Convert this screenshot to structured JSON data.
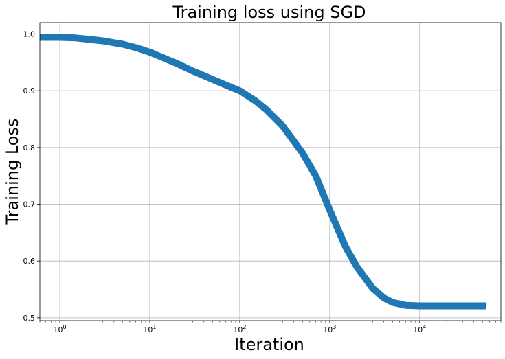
{
  "chart_data": {
    "type": "line",
    "title": "Training loss using SGD",
    "xlabel": "Iteration",
    "ylabel": "Training Loss",
    "xscale": "log",
    "xlim": [
      0.6,
      80000
    ],
    "ylim": [
      0.495,
      1.02
    ],
    "grid": true,
    "x_ticks": [
      {
        "base": "10",
        "exp": "0",
        "value": 1
      },
      {
        "base": "10",
        "exp": "1",
        "value": 10
      },
      {
        "base": "10",
        "exp": "2",
        "value": 100
      },
      {
        "base": "10",
        "exp": "3",
        "value": 1000
      },
      {
        "base": "10",
        "exp": "4",
        "value": 10000
      }
    ],
    "y_ticks": [
      "0.5",
      "0.6",
      "0.7",
      "0.8",
      "0.9",
      "1.0"
    ],
    "series": [
      {
        "color": "#1f77b4",
        "x": [
          0.6,
          1,
          1.5,
          2,
          3,
          5,
          7,
          10,
          20,
          30,
          50,
          70,
          100,
          150,
          200,
          300,
          500,
          700,
          1000,
          1500,
          2000,
          3000,
          4000,
          5000,
          7000,
          10000,
          20000,
          55000
        ],
        "y": [
          0.994,
          0.994,
          0.993,
          0.991,
          0.988,
          0.982,
          0.976,
          0.968,
          0.948,
          0.935,
          0.92,
          0.91,
          0.9,
          0.882,
          0.866,
          0.838,
          0.79,
          0.75,
          0.69,
          0.625,
          0.59,
          0.552,
          0.535,
          0.527,
          0.522,
          0.521,
          0.521,
          0.521
        ]
      }
    ]
  }
}
